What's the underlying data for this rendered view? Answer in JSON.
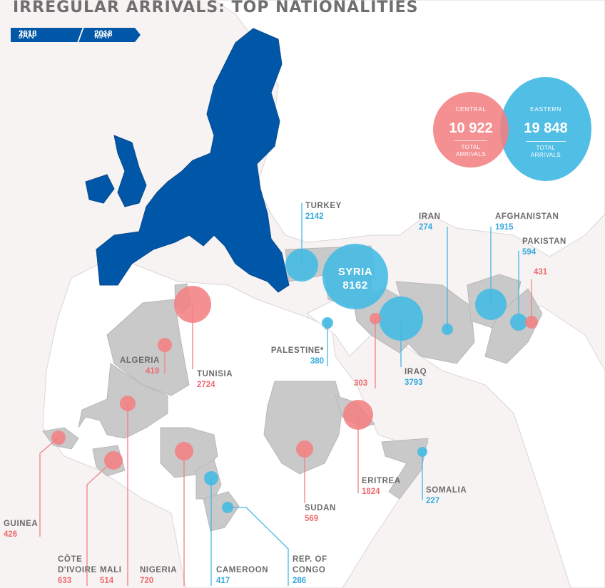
{
  "title": "IRREGULAR ARRIVALS: TOP NATIONALITIES",
  "period": {
    "start_month": "JAN",
    "start_year": "2018",
    "end_month": "MAY",
    "end_year": "2018"
  },
  "colors": {
    "central": "#f27f83",
    "eastern": "#42b9e4",
    "eu": "#0057a7",
    "land": "#c8c8c8",
    "sea": "#f7f3f3"
  },
  "totals": {
    "central": {
      "label": "CENTRAL",
      "value": "10 922",
      "caption_line1": "TOTAL",
      "caption_line2": "ARRIVALS"
    },
    "eastern": {
      "label": "EASTERN",
      "value": "19 848",
      "caption_line1": "TOTAL",
      "caption_line2": "ARRIVALS"
    }
  },
  "nationalities": {
    "syria": {
      "name": "SYRIA",
      "value": "8162",
      "route": "eastern"
    },
    "turkey": {
      "name": "TURKEY",
      "value": "2142",
      "route": "eastern"
    },
    "iran": {
      "name": "IRAN",
      "value": "274",
      "route": "eastern"
    },
    "afghanistan": {
      "name": "AFGHANISTAN",
      "value": "1915",
      "route": "eastern"
    },
    "pakistan_eastern": {
      "name": "PAKISTAN",
      "value": "594",
      "route": "eastern"
    },
    "pakistan_central": {
      "value": "431",
      "route": "central"
    },
    "palestine": {
      "name": "PALESTINE*",
      "value": "380",
      "route": "eastern"
    },
    "iraq_eastern": {
      "name": "IRAQ",
      "value": "3793",
      "route": "eastern"
    },
    "iraq_central": {
      "value": "303",
      "route": "central"
    },
    "algeria": {
      "name": "ALGERIA",
      "value": "419",
      "route": "central"
    },
    "tunisia": {
      "name": "TUNISIA",
      "value": "2724",
      "route": "central"
    },
    "eritrea": {
      "name": "ERITREA",
      "value": "1824",
      "route": "central"
    },
    "somalia": {
      "name": "SOMALIA",
      "value": "227",
      "route": "eastern"
    },
    "sudan": {
      "name": "SUDAN",
      "value": "569",
      "route": "central"
    },
    "guinea": {
      "name": "GUINEA",
      "value": "426",
      "route": "central"
    },
    "cote_divoire": {
      "name_line1": "CÔTE",
      "name_line2": "D'IVOIRE",
      "value": "633",
      "route": "central"
    },
    "mali": {
      "name": "MALI",
      "value": "514",
      "route": "central"
    },
    "nigeria": {
      "name": "NIGERIA",
      "value": "720",
      "route": "central"
    },
    "cameroon": {
      "name": "CAMEROON",
      "value": "417",
      "route": "eastern"
    },
    "rep_congo": {
      "name_line1": "REP. OF",
      "name_line2": "CONGO",
      "value": "286",
      "route": "eastern"
    }
  }
}
